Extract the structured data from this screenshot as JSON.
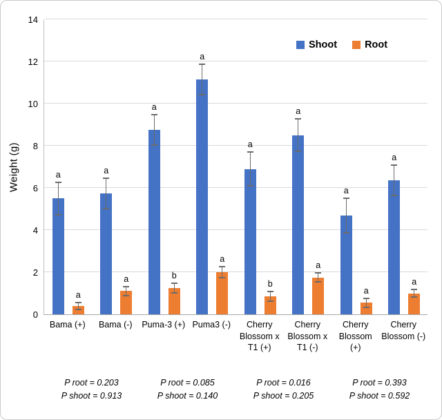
{
  "colors": {
    "shoot": "#4472C4",
    "root": "#ED7D31",
    "gridline": "#d9d9d9",
    "error_bar": "#6b6b6b"
  },
  "chart_data": {
    "type": "bar",
    "title": "",
    "xlabel": "",
    "ylabel": "Weight (g)",
    "ylim": [
      0,
      14
    ],
    "yticks": [
      0,
      2,
      4,
      6,
      8,
      10,
      12,
      14
    ],
    "grid": true,
    "legend_position": "top-right",
    "categories": [
      "Bama (+)",
      "Bama (-)",
      "Puma-3 (+)",
      "Puma3 (-)",
      "Cherry Blossom x T1 (+)",
      "Cherry Blossom x T1 (-)",
      "Cherry Blossom (+)",
      "Cherry Blossom (-)"
    ],
    "series": [
      {
        "name": "Shoot",
        "color": "#4472C4",
        "values": [
          5.5,
          5.75,
          8.75,
          11.15,
          6.9,
          8.5,
          4.7,
          6.35
        ],
        "errors": [
          0.8,
          0.75,
          0.75,
          0.75,
          0.85,
          0.8,
          0.85,
          0.75
        ],
        "letters": [
          "a",
          "a",
          "a",
          "a",
          "a",
          "a",
          "a",
          "a"
        ]
      },
      {
        "name": "Root",
        "color": "#ED7D31",
        "values": [
          0.4,
          1.1,
          1.25,
          2.0,
          0.85,
          1.75,
          0.55,
          1.0
        ],
        "errors": [
          0.2,
          0.25,
          0.25,
          0.3,
          0.25,
          0.25,
          0.25,
          0.2
        ],
        "letters": [
          "a",
          "a",
          "b",
          "a",
          "b",
          "a",
          "a",
          "a"
        ]
      }
    ],
    "annotations": [
      {
        "lines": [
          "P root = 0.203",
          "P shoot = 0.913"
        ]
      },
      {
        "lines": [
          "P root = 0.085",
          "P shoot = 0.140"
        ]
      },
      {
        "lines": [
          "P root = 0.016",
          "P shoot = 0.205"
        ]
      },
      {
        "lines": [
          "P root = 0.393",
          "P shoot = 0.592"
        ]
      }
    ]
  }
}
